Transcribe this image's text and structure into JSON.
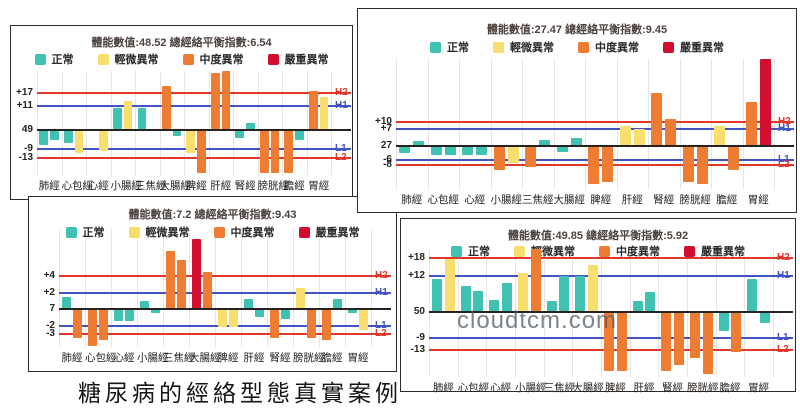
{
  "caption": "糖尿病的經絡型態真實案例",
  "colors": {
    "normal": "#3FC2B2",
    "mild": "#F8DE6D",
    "moderate": "#EE7D33",
    "severe": "#D30D2E",
    "red_line": "#E2382C",
    "blue_line": "#4353C4",
    "baseline": "#26221F",
    "grid": "#E6E6E6"
  },
  "legend": [
    {
      "label": "正常",
      "level": "normal"
    },
    {
      "label": "輕微異常",
      "level": "mild"
    },
    {
      "label": "中度異常",
      "level": "moderate"
    },
    {
      "label": "嚴重異常",
      "level": "severe"
    }
  ],
  "chart_data": [
    {
      "type": "bar",
      "position": "top-left",
      "title": "體能數值:48.52 總經絡平衡指數:6.54",
      "energy_value": 48.52,
      "balance_index": 6.54,
      "ylim": [
        -21,
        27
      ],
      "y_ticks": [
        {
          "label": "+17",
          "value": 17,
          "side_label": "H2",
          "color": "red"
        },
        {
          "label": "+11",
          "value": 11,
          "side_label": "H1",
          "color": "blue"
        },
        {
          "label": "49",
          "value": 0,
          "side_label": "",
          "color": "baseline"
        },
        {
          "label": "-9",
          "value": -9,
          "side_label": "L1",
          "color": "blue"
        },
        {
          "label": "-13",
          "value": -13,
          "side_label": "L2",
          "color": "red"
        }
      ],
      "meridians": [
        {
          "name": "肺經",
          "bars": [
            {
              "v": -7,
              "level": "normal"
            },
            {
              "v": -5,
              "level": "normal"
            }
          ]
        },
        {
          "name": "心包經",
          "bars": [
            {
              "v": -6,
              "level": "normal"
            },
            {
              "v": -11,
              "level": "mild"
            }
          ]
        },
        {
          "name": "心經",
          "bars": [
            {
              "v": 0,
              "level": "normal"
            },
            {
              "v": -10,
              "level": "mild"
            }
          ]
        },
        {
          "name": "小腸經",
          "bars": [
            {
              "v": 10,
              "level": "normal"
            },
            {
              "v": 13,
              "level": "mild"
            }
          ]
        },
        {
          "name": "三焦經",
          "bars": [
            {
              "v": 10,
              "level": "normal"
            },
            {
              "v": 0,
              "level": "normal"
            }
          ]
        },
        {
          "name": "大腸經",
          "bars": [
            {
              "v": 20,
              "level": "moderate"
            },
            {
              "v": -3,
              "level": "normal"
            }
          ]
        },
        {
          "name": "脾經",
          "bars": [
            {
              "v": -11,
              "level": "mild"
            },
            {
              "v": -20,
              "level": "moderate"
            }
          ]
        },
        {
          "name": "肝經",
          "bars": [
            {
              "v": 26,
              "level": "moderate"
            },
            {
              "v": 27,
              "level": "moderate"
            }
          ]
        },
        {
          "name": "腎經",
          "bars": [
            {
              "v": -4,
              "level": "normal"
            },
            {
              "v": 3,
              "level": "normal"
            }
          ]
        },
        {
          "name": "膀胱經",
          "bars": [
            {
              "v": -20,
              "level": "moderate"
            },
            {
              "v": -20,
              "level": "moderate"
            }
          ]
        },
        {
          "name": "膽經",
          "bars": [
            {
              "v": -20,
              "level": "moderate"
            },
            {
              "v": -5,
              "level": "normal"
            }
          ]
        },
        {
          "name": "胃經",
          "bars": [
            {
              "v": 18,
              "level": "moderate"
            },
            {
              "v": 15,
              "level": "mild"
            }
          ]
        }
      ]
    },
    {
      "type": "bar",
      "position": "top-right",
      "title": "體能數值:27.47 總經絡平衡指數:9.45",
      "energy_value": 27.47,
      "balance_index": 9.45,
      "ylim": [
        -18,
        36
      ],
      "y_ticks": [
        {
          "label": "+10",
          "value": 10,
          "side_label": "H2",
          "color": "red"
        },
        {
          "label": "+7",
          "value": 7,
          "side_label": "H1",
          "color": "blue"
        },
        {
          "label": "27",
          "value": 0,
          "side_label": "",
          "color": "baseline"
        },
        {
          "label": "-6",
          "value": -6,
          "side_label": "L1",
          "color": "blue"
        },
        {
          "label": "-8",
          "value": -8,
          "side_label": "L2",
          "color": "red"
        }
      ],
      "meridians": [
        {
          "name": "肺經",
          "bars": [
            {
              "v": -3,
              "level": "normal"
            },
            {
              "v": 2,
              "level": "normal"
            }
          ]
        },
        {
          "name": "心包經",
          "bars": [
            {
              "v": -4,
              "level": "normal"
            },
            {
              "v": -4,
              "level": "normal"
            }
          ]
        },
        {
          "name": "心經",
          "bars": [
            {
              "v": -4,
              "level": "normal"
            },
            {
              "v": -4,
              "level": "normal"
            }
          ]
        },
        {
          "name": "小腸經",
          "bars": [
            {
              "v": -10,
              "level": "moderate"
            },
            {
              "v": -7,
              "level": "mild"
            }
          ]
        },
        {
          "name": "三焦經",
          "bars": [
            {
              "v": -9,
              "level": "moderate"
            },
            {
              "v": 2.5,
              "level": "normal"
            }
          ]
        },
        {
          "name": "大腸經",
          "bars": [
            {
              "v": -2.5,
              "level": "normal"
            },
            {
              "v": 3,
              "level": "normal"
            }
          ]
        },
        {
          "name": "脾經",
          "bars": [
            {
              "v": -16,
              "level": "moderate"
            },
            {
              "v": -15,
              "level": "moderate"
            }
          ]
        },
        {
          "name": "肝經",
          "bars": [
            {
              "v": 8,
              "level": "mild"
            },
            {
              "v": 7,
              "level": "mild"
            }
          ]
        },
        {
          "name": "腎經",
          "bars": [
            {
              "v": 22,
              "level": "moderate"
            },
            {
              "v": 11,
              "level": "moderate"
            }
          ]
        },
        {
          "name": "膀胱經",
          "bars": [
            {
              "v": -15,
              "level": "moderate"
            },
            {
              "v": -16,
              "level": "moderate"
            }
          ]
        },
        {
          "name": "膽經",
          "bars": [
            {
              "v": 8,
              "level": "mild"
            },
            {
              "v": -10,
              "level": "moderate"
            }
          ]
        },
        {
          "name": "胃經",
          "bars": [
            {
              "v": 18,
              "level": "moderate"
            },
            {
              "v": 36,
              "level": "severe"
            }
          ]
        }
      ]
    },
    {
      "type": "bar",
      "position": "bottom-left",
      "title": "體能數值:7.2 總經絡平衡指數:9.43",
      "energy_value": 7.2,
      "balance_index": 9.43,
      "ylim": [
        -4.6,
        9.7
      ],
      "y_ticks": [
        {
          "label": "+4",
          "value": 4,
          "side_label": "H2",
          "color": "red"
        },
        {
          "label": "+2",
          "value": 2,
          "side_label": "H1",
          "color": "blue"
        },
        {
          "label": "7",
          "value": 0,
          "side_label": "",
          "color": "baseline"
        },
        {
          "label": "-2",
          "value": -2,
          "side_label": "L1",
          "color": "blue"
        },
        {
          "label": "-3",
          "value": -3,
          "side_label": "L2",
          "color": "red"
        }
      ],
      "meridians": [
        {
          "name": "肺經",
          "bars": [
            {
              "v": 1.5,
              "level": "normal"
            },
            {
              "v": -3.5,
              "level": "moderate"
            }
          ]
        },
        {
          "name": "心包經",
          "bars": [
            {
              "v": -4.5,
              "level": "moderate"
            },
            {
              "v": -3.7,
              "level": "moderate"
            }
          ]
        },
        {
          "name": "心經",
          "bars": [
            {
              "v": -1.5,
              "level": "normal"
            },
            {
              "v": -1.5,
              "level": "normal"
            }
          ]
        },
        {
          "name": "小腸經",
          "bars": [
            {
              "v": 1,
              "level": "normal"
            },
            {
              "v": -0.5,
              "level": "normal"
            }
          ]
        },
        {
          "name": "三焦經",
          "bars": [
            {
              "v": 7,
              "level": "moderate"
            },
            {
              "v": 6,
              "level": "moderate"
            }
          ]
        },
        {
          "name": "大腸經",
          "bars": [
            {
              "v": 8.5,
              "level": "severe"
            },
            {
              "v": 4.5,
              "level": "moderate"
            }
          ]
        },
        {
          "name": "脾經",
          "bars": [
            {
              "v": -2.2,
              "level": "mild"
            },
            {
              "v": -2.2,
              "level": "mild"
            }
          ]
        },
        {
          "name": "肝經",
          "bars": [
            {
              "v": 1.2,
              "level": "normal"
            },
            {
              "v": -1,
              "level": "normal"
            }
          ]
        },
        {
          "name": "腎經",
          "bars": [
            {
              "v": -3.5,
              "level": "moderate"
            },
            {
              "v": -1.2,
              "level": "normal"
            }
          ]
        },
        {
          "name": "膀胱經",
          "bars": [
            {
              "v": 2.5,
              "level": "mild"
            },
            {
              "v": -3.5,
              "level": "moderate"
            }
          ]
        },
        {
          "name": "膽經",
          "bars": [
            {
              "v": -3.7,
              "level": "moderate"
            },
            {
              "v": 1.2,
              "level": "normal"
            }
          ]
        },
        {
          "name": "胃經",
          "bars": [
            {
              "v": -0.5,
              "level": "normal"
            },
            {
              "v": -2.5,
              "level": "mild"
            }
          ]
        }
      ]
    },
    {
      "type": "bar",
      "position": "bottom-right",
      "title": "體能數值:49.85 總經絡平衡指數:5.92",
      "energy_value": 49.85,
      "balance_index": 5.92,
      "watermark": "cloudtcm.com",
      "ylim": [
        -22,
        21
      ],
      "y_ticks": [
        {
          "label": "+18",
          "value": 18,
          "side_label": "H2",
          "color": "red"
        },
        {
          "label": "+12",
          "value": 12,
          "side_label": "H1",
          "color": "blue"
        },
        {
          "label": "50",
          "value": 0,
          "side_label": "",
          "color": "baseline"
        },
        {
          "label": "-9",
          "value": -9,
          "side_label": "L1",
          "color": "blue"
        },
        {
          "label": "-13",
          "value": -13,
          "side_label": "L2",
          "color": "red"
        }
      ],
      "meridians": [
        {
          "name": "肺經",
          "bars": [
            {
              "v": 11,
              "level": "normal"
            },
            {
              "v": 17.5,
              "level": "mild"
            }
          ]
        },
        {
          "name": "心包經",
          "bars": [
            {
              "v": 8.5,
              "level": "normal"
            },
            {
              "v": 7,
              "level": "normal"
            }
          ]
        },
        {
          "name": "心經",
          "bars": [
            {
              "v": 4,
              "level": "normal"
            },
            {
              "v": 9.5,
              "level": "normal"
            }
          ]
        },
        {
          "name": "小腸經",
          "bars": [
            {
              "v": 13,
              "level": "mild"
            },
            {
              "v": 21,
              "level": "moderate"
            }
          ]
        },
        {
          "name": "三焦經",
          "bars": [
            {
              "v": 3.5,
              "level": "normal"
            },
            {
              "v": 12,
              "level": "normal"
            }
          ]
        },
        {
          "name": "大腸經",
          "bars": [
            {
              "v": 12,
              "level": "normal"
            },
            {
              "v": 15.5,
              "level": "mild"
            }
          ]
        },
        {
          "name": "脾經",
          "bars": [
            {
              "v": -20,
              "level": "moderate"
            },
            {
              "v": -20,
              "level": "moderate"
            }
          ]
        },
        {
          "name": "肝經",
          "bars": [
            {
              "v": 3.5,
              "level": "normal"
            },
            {
              "v": 6.5,
              "level": "normal"
            }
          ]
        },
        {
          "name": "腎經",
          "bars": [
            {
              "v": -20,
              "level": "moderate"
            },
            {
              "v": -18,
              "level": "moderate"
            }
          ]
        },
        {
          "name": "膀胱經",
          "bars": [
            {
              "v": -15.5,
              "level": "moderate"
            },
            {
              "v": -21,
              "level": "moderate"
            }
          ]
        },
        {
          "name": "膽經",
          "bars": [
            {
              "v": -6.5,
              "level": "normal"
            },
            {
              "v": -13.5,
              "level": "moderate"
            }
          ]
        },
        {
          "name": "胃經",
          "bars": [
            {
              "v": 11,
              "level": "normal"
            },
            {
              "v": -4,
              "level": "normal"
            }
          ]
        }
      ]
    }
  ]
}
